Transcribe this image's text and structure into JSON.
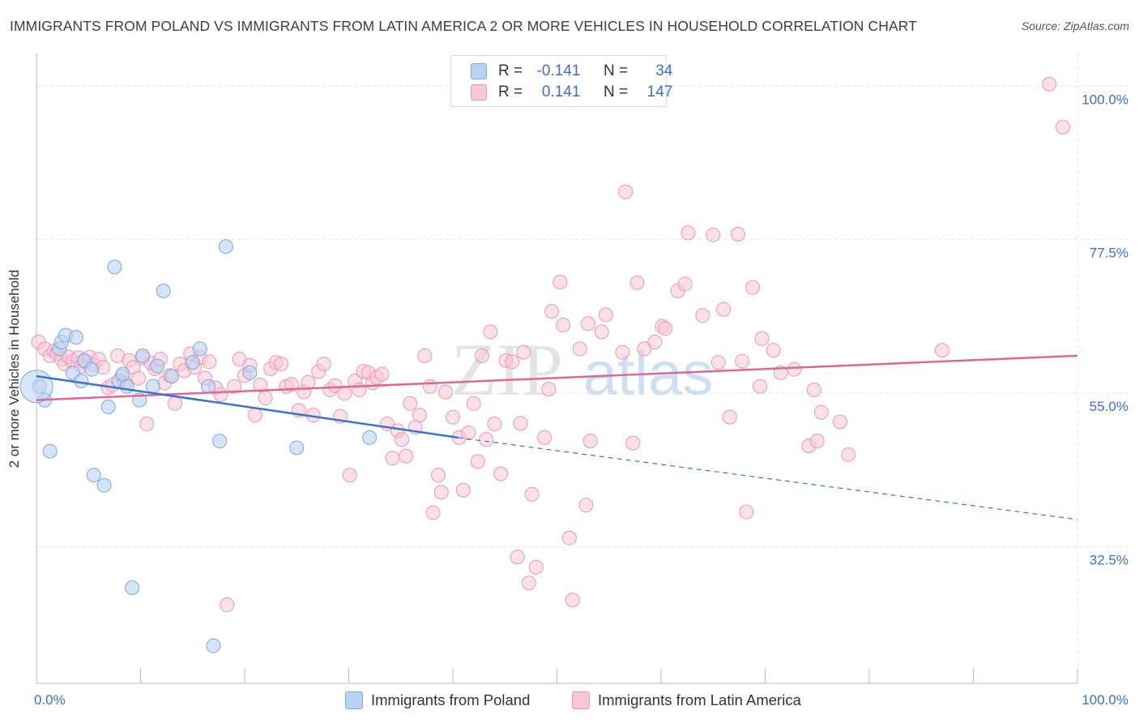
{
  "header": {
    "title": "IMMIGRANTS FROM POLAND VS IMMIGRANTS FROM LATIN AMERICA 2 OR MORE VEHICLES IN HOUSEHOLD CORRELATION CHART",
    "source": "Source: ZipAtlas.com"
  },
  "watermark": {
    "zip": "ZIP",
    "atlas": "atlas"
  },
  "legend": {
    "poland": {
      "r_label": "R =",
      "r_value": "-0.141",
      "n_label": "N =",
      "n_value": "34"
    },
    "latin": {
      "r_label": "R =",
      "r_value": "0.141",
      "n_label": "N =",
      "n_value": "147"
    }
  },
  "bottom_legend": {
    "poland": "Immigrants from Poland",
    "latin": "Immigrants from Latin America"
  },
  "colors": {
    "poland_fill": "#b9d2f3",
    "poland_stroke": "#7ea6e0",
    "poland_line": "#3a73d1",
    "latin_fill": "#f8c6d6",
    "latin_stroke": "#eb97b2",
    "latin_line": "#e06792",
    "tick_label": "#3b6fcc",
    "grid": "#e3e3e3"
  },
  "chart_data": {
    "type": "scatter",
    "title": "IMMIGRANTS FROM POLAND VS IMMIGRANTS FROM LATIN AMERICA 2 OR MORE VEHICLES IN HOUSEHOLD CORRELATION CHART",
    "xlabel": "",
    "ylabel": "2 or more Vehicles in Household",
    "xlim": [
      0,
      100
    ],
    "ylim": [
      12.5,
      103
    ],
    "x_tick_labels": [
      "0.0%",
      "100.0%"
    ],
    "y_ticks": [
      100.0,
      77.5,
      55.0,
      32.5
    ],
    "y_tick_labels": [
      "100.0%",
      "77.5%",
      "55.0%",
      "32.5%"
    ],
    "grid": true,
    "series": [
      {
        "name": "Immigrants from Poland",
        "R": -0.141,
        "N": 34,
        "trend": {
          "x0": 0,
          "y0": 57.5,
          "x_solid_end": 40.5,
          "y_solid_end": 48.5,
          "x1": 100,
          "y1": 36.5
        },
        "points": [
          [
            0.3,
            56.0
          ],
          [
            0.8,
            54.0
          ],
          [
            1.3,
            46.5
          ],
          [
            2.2,
            61.5
          ],
          [
            2.4,
            62.5
          ],
          [
            2.8,
            63.5
          ],
          [
            3.5,
            58.0
          ],
          [
            3.8,
            63.2
          ],
          [
            4.3,
            56.8
          ],
          [
            4.6,
            59.8
          ],
          [
            5.3,
            58.5
          ],
          [
            5.5,
            43.0
          ],
          [
            6.5,
            41.5
          ],
          [
            6.9,
            53.0
          ],
          [
            7.5,
            73.5
          ],
          [
            7.9,
            56.8
          ],
          [
            8.3,
            57.8
          ],
          [
            8.7,
            56.0
          ],
          [
            9.2,
            26.5
          ],
          [
            9.9,
            54.0
          ],
          [
            10.2,
            60.5
          ],
          [
            11.2,
            56.0
          ],
          [
            11.6,
            59.0
          ],
          [
            12.2,
            70.0
          ],
          [
            13.0,
            57.5
          ],
          [
            15.0,
            59.5
          ],
          [
            15.7,
            61.5
          ],
          [
            16.5,
            56.0
          ],
          [
            17.0,
            18.0
          ],
          [
            17.6,
            48.0
          ],
          [
            18.2,
            76.5
          ],
          [
            20.5,
            58.0
          ],
          [
            25.0,
            47.0
          ],
          [
            32.0,
            48.5
          ]
        ]
      },
      {
        "name": "Immigrants from Latin America",
        "R": 0.141,
        "N": 147,
        "trend": {
          "x0": 0,
          "y0": 54.0,
          "x1": 100,
          "y1": 60.5
        },
        "points": [
          [
            0.2,
            62.5
          ],
          [
            0.8,
            61.5
          ],
          [
            1.3,
            60.5
          ],
          [
            1.7,
            61.2
          ],
          [
            2.0,
            60.8
          ],
          [
            2.4,
            60.0
          ],
          [
            2.7,
            59.3
          ],
          [
            3.1,
            60.3
          ],
          [
            3.5,
            59.7
          ],
          [
            4.0,
            60.2
          ],
          [
            4.3,
            59.0
          ],
          [
            4.6,
            59.6
          ],
          [
            5.1,
            60.3
          ],
          [
            5.5,
            59.2
          ],
          [
            6.0,
            60.0
          ],
          [
            6.4,
            58.8
          ],
          [
            6.9,
            55.8
          ],
          [
            7.3,
            56.2
          ],
          [
            7.8,
            60.5
          ],
          [
            8.2,
            57.5
          ],
          [
            8.5,
            56.5
          ],
          [
            8.9,
            59.8
          ],
          [
            9.3,
            58.8
          ],
          [
            9.8,
            57.2
          ],
          [
            10.2,
            60.2
          ],
          [
            10.6,
            50.5
          ],
          [
            11.0,
            59.4
          ],
          [
            11.4,
            58.6
          ],
          [
            11.9,
            60.0
          ],
          [
            12.3,
            56.5
          ],
          [
            12.8,
            57.6
          ],
          [
            13.3,
            53.5
          ],
          [
            13.8,
            59.3
          ],
          [
            14.2,
            58.3
          ],
          [
            14.8,
            60.8
          ],
          [
            15.2,
            58.8
          ],
          [
            15.7,
            60.2
          ],
          [
            16.2,
            57.2
          ],
          [
            16.6,
            59.6
          ],
          [
            17.2,
            55.8
          ],
          [
            17.7,
            54.8
          ],
          [
            18.3,
            24.0
          ],
          [
            19.0,
            56.0
          ],
          [
            19.5,
            60.0
          ],
          [
            20.0,
            57.6
          ],
          [
            20.5,
            59.1
          ],
          [
            21.0,
            51.8
          ],
          [
            21.5,
            56.2
          ],
          [
            22.0,
            54.3
          ],
          [
            22.5,
            58.6
          ],
          [
            23.0,
            59.5
          ],
          [
            23.5,
            59.3
          ],
          [
            24.0,
            56.0
          ],
          [
            24.5,
            56.3
          ],
          [
            25.2,
            52.5
          ],
          [
            25.7,
            55.2
          ],
          [
            26.1,
            56.6
          ],
          [
            26.6,
            51.8
          ],
          [
            27.1,
            58.2
          ],
          [
            27.6,
            59.3
          ],
          [
            28.2,
            55.5
          ],
          [
            28.7,
            56.1
          ],
          [
            29.2,
            51.6
          ],
          [
            29.6,
            55.0
          ],
          [
            30.1,
            43.0
          ],
          [
            30.6,
            56.8
          ],
          [
            31.0,
            55.5
          ],
          [
            31.4,
            58.2
          ],
          [
            31.9,
            58.0
          ],
          [
            32.3,
            56.5
          ],
          [
            32.7,
            57.3
          ],
          [
            33.2,
            57.8
          ],
          [
            33.7,
            50.5
          ],
          [
            34.2,
            45.5
          ],
          [
            34.7,
            49.5
          ],
          [
            35.1,
            48.2
          ],
          [
            35.5,
            45.8
          ],
          [
            35.9,
            53.5
          ],
          [
            36.4,
            50.0
          ],
          [
            36.8,
            51.8
          ],
          [
            37.3,
            60.5
          ],
          [
            37.8,
            56.0
          ],
          [
            38.1,
            37.5
          ],
          [
            38.6,
            43.0
          ],
          [
            38.9,
            40.5
          ],
          [
            39.3,
            55.2
          ],
          [
            40.0,
            51.5
          ],
          [
            40.6,
            48.5
          ],
          [
            41.0,
            40.8
          ],
          [
            41.5,
            49.2
          ],
          [
            42.0,
            53.5
          ],
          [
            42.4,
            45.0
          ],
          [
            42.8,
            60.5
          ],
          [
            43.2,
            48.2
          ],
          [
            43.6,
            64.0
          ],
          [
            44.0,
            50.5
          ],
          [
            44.6,
            43.2
          ],
          [
            45.1,
            59.8
          ],
          [
            45.7,
            59.6
          ],
          [
            46.2,
            31.0
          ],
          [
            46.5,
            50.6
          ],
          [
            46.8,
            61.0
          ],
          [
            47.3,
            27.2
          ],
          [
            47.6,
            40.2
          ],
          [
            48.0,
            29.5
          ],
          [
            48.8,
            48.5
          ],
          [
            49.2,
            55.6
          ],
          [
            49.5,
            67.0
          ],
          [
            50.3,
            71.3
          ],
          [
            50.6,
            65.0
          ],
          [
            51.2,
            33.8
          ],
          [
            51.5,
            24.7
          ],
          [
            52.2,
            61.5
          ],
          [
            52.8,
            38.6
          ],
          [
            53.0,
            65.2
          ],
          [
            53.2,
            48.0
          ],
          [
            54.3,
            64.0
          ],
          [
            54.7,
            66.5
          ],
          [
            56.3,
            61.0
          ],
          [
            56.6,
            84.5
          ],
          [
            57.3,
            47.7
          ],
          [
            57.7,
            71.2
          ],
          [
            58.4,
            61.5
          ],
          [
            59.4,
            62.5
          ],
          [
            60.1,
            64.8
          ],
          [
            60.4,
            64.5
          ],
          [
            61.6,
            70.0
          ],
          [
            62.3,
            71.0
          ],
          [
            62.6,
            78.5
          ],
          [
            64.0,
            66.4
          ],
          [
            65.0,
            78.2
          ],
          [
            65.5,
            59.5
          ],
          [
            66.0,
            67.3
          ],
          [
            66.6,
            51.5
          ],
          [
            67.4,
            78.3
          ],
          [
            67.8,
            59.7
          ],
          [
            68.2,
            37.6
          ],
          [
            68.8,
            70.5
          ],
          [
            69.5,
            56.0
          ],
          [
            69.7,
            63.0
          ],
          [
            70.8,
            61.3
          ],
          [
            71.5,
            58.0
          ],
          [
            72.8,
            58.5
          ],
          [
            74.2,
            47.3
          ],
          [
            74.7,
            55.5
          ],
          [
            75.0,
            48.0
          ],
          [
            75.4,
            52.2
          ],
          [
            77.2,
            50.8
          ],
          [
            78.0,
            46.0
          ],
          [
            97.3,
            100.3
          ],
          [
            98.6,
            94.0
          ],
          [
            87.0,
            61.3
          ]
        ]
      }
    ]
  }
}
